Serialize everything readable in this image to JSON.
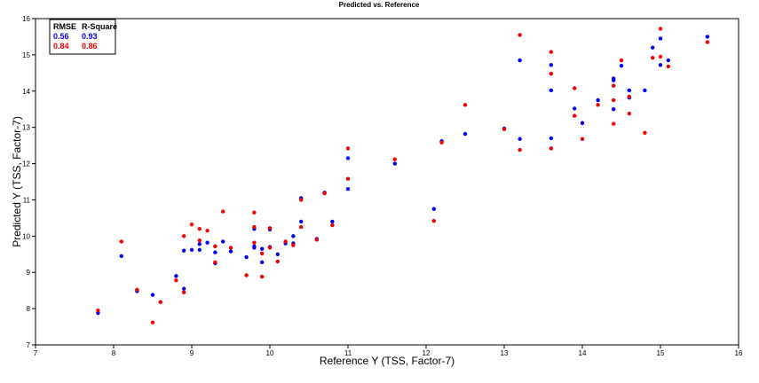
{
  "chart_data": {
    "type": "scatter",
    "title": "Predicted vs. Reference",
    "xlabel": "Reference Y (TSS, Factor-7)",
    "ylabel": "Predicted Y (TSS, Factor-7)",
    "xlim": [
      7,
      16
    ],
    "ylim": [
      7,
      16
    ],
    "xticks": [
      "7",
      "8",
      "9",
      "10",
      "11",
      "12",
      "13",
      "14",
      "15",
      "16"
    ],
    "yticks": [
      "7",
      "8",
      "9",
      "10",
      "11",
      "12",
      "13",
      "14",
      "15",
      "16"
    ],
    "grid": false,
    "legend_position": "top-left",
    "legend": {
      "headers": [
        "RMSE",
        "R-Square"
      ],
      "rows": [
        {
          "rmse": "0.56",
          "rsquare": "0.93",
          "color": "#0000ee"
        },
        {
          "rmse": "0.84",
          "rsquare": "0.86",
          "color": "#ee0000"
        }
      ]
    },
    "series": [
      {
        "color": "#0000ee",
        "points": [
          [
            7.8,
            7.88
          ],
          [
            8.1,
            9.45
          ],
          [
            8.3,
            8.48
          ],
          [
            8.5,
            8.38
          ],
          [
            8.8,
            8.9
          ],
          [
            8.9,
            8.55
          ],
          [
            8.9,
            9.6
          ],
          [
            9.0,
            9.62
          ],
          [
            9.1,
            9.62
          ],
          [
            9.1,
            9.78
          ],
          [
            9.2,
            9.82
          ],
          [
            9.3,
            9.55
          ],
          [
            9.3,
            9.25
          ],
          [
            9.4,
            9.85
          ],
          [
            9.5,
            9.58
          ],
          [
            9.7,
            9.42
          ],
          [
            9.8,
            9.68
          ],
          [
            9.8,
            9.72
          ],
          [
            9.8,
            10.2
          ],
          [
            9.9,
            9.28
          ],
          [
            9.9,
            9.65
          ],
          [
            10.0,
            9.7
          ],
          [
            10.0,
            10.18
          ],
          [
            10.1,
            9.5
          ],
          [
            10.2,
            9.8
          ],
          [
            10.3,
            9.8
          ],
          [
            10.3,
            10.0
          ],
          [
            10.4,
            10.4
          ],
          [
            10.4,
            11.05
          ],
          [
            10.6,
            9.92
          ],
          [
            10.7,
            11.2
          ],
          [
            10.8,
            10.4
          ],
          [
            11.0,
            11.3
          ],
          [
            11.0,
            12.15
          ],
          [
            11.6,
            12.0
          ],
          [
            12.1,
            10.75
          ],
          [
            12.2,
            12.62
          ],
          [
            12.5,
            12.82
          ],
          [
            13.0,
            12.97
          ],
          [
            13.2,
            14.85
          ],
          [
            13.2,
            12.68
          ],
          [
            13.6,
            14.72
          ],
          [
            13.6,
            14.02
          ],
          [
            13.6,
            12.7
          ],
          [
            13.9,
            13.52
          ],
          [
            14.0,
            13.12
          ],
          [
            14.2,
            13.75
          ],
          [
            14.4,
            14.35
          ],
          [
            14.4,
            14.3
          ],
          [
            14.4,
            13.5
          ],
          [
            14.5,
            14.7
          ],
          [
            14.6,
            14.02
          ],
          [
            14.6,
            13.82
          ],
          [
            14.8,
            14.02
          ],
          [
            14.9,
            15.2
          ],
          [
            15.0,
            15.45
          ],
          [
            15.0,
            14.72
          ],
          [
            15.1,
            14.85
          ],
          [
            15.6,
            15.5
          ]
        ]
      },
      {
        "color": "#ee0000",
        "points": [
          [
            7.8,
            7.95
          ],
          [
            8.1,
            9.85
          ],
          [
            8.3,
            8.52
          ],
          [
            8.5,
            7.62
          ],
          [
            8.6,
            8.18
          ],
          [
            8.8,
            8.78
          ],
          [
            8.9,
            8.45
          ],
          [
            8.9,
            10.0
          ],
          [
            9.0,
            10.32
          ],
          [
            9.1,
            10.2
          ],
          [
            9.1,
            9.88
          ],
          [
            9.2,
            10.15
          ],
          [
            9.3,
            9.72
          ],
          [
            9.3,
            9.28
          ],
          [
            9.4,
            10.68
          ],
          [
            9.5,
            9.68
          ],
          [
            9.7,
            8.92
          ],
          [
            9.8,
            10.65
          ],
          [
            9.8,
            10.25
          ],
          [
            9.8,
            9.82
          ],
          [
            9.9,
            9.52
          ],
          [
            9.9,
            8.88
          ],
          [
            10.0,
            9.68
          ],
          [
            10.0,
            10.22
          ],
          [
            10.1,
            9.3
          ],
          [
            10.2,
            9.85
          ],
          [
            10.3,
            9.75
          ],
          [
            10.4,
            10.25
          ],
          [
            10.4,
            11.0
          ],
          [
            10.6,
            9.9
          ],
          [
            10.7,
            11.18
          ],
          [
            10.8,
            10.3
          ],
          [
            11.0,
            11.58
          ],
          [
            11.0,
            12.42
          ],
          [
            11.6,
            12.12
          ],
          [
            12.1,
            10.42
          ],
          [
            12.2,
            12.58
          ],
          [
            12.5,
            13.62
          ],
          [
            13.0,
            12.95
          ],
          [
            13.2,
            15.55
          ],
          [
            13.2,
            12.38
          ],
          [
            13.6,
            15.08
          ],
          [
            13.6,
            14.48
          ],
          [
            13.6,
            12.42
          ],
          [
            13.9,
            14.08
          ],
          [
            13.9,
            13.32
          ],
          [
            14.0,
            12.68
          ],
          [
            14.2,
            13.62
          ],
          [
            14.4,
            14.15
          ],
          [
            14.4,
            13.75
          ],
          [
            14.4,
            13.1
          ],
          [
            14.5,
            14.85
          ],
          [
            14.6,
            13.38
          ],
          [
            14.6,
            13.85
          ],
          [
            14.8,
            12.85
          ],
          [
            14.9,
            14.92
          ],
          [
            15.0,
            15.72
          ],
          [
            15.0,
            14.95
          ],
          [
            15.1,
            14.68
          ],
          [
            15.6,
            15.35
          ]
        ]
      }
    ]
  }
}
